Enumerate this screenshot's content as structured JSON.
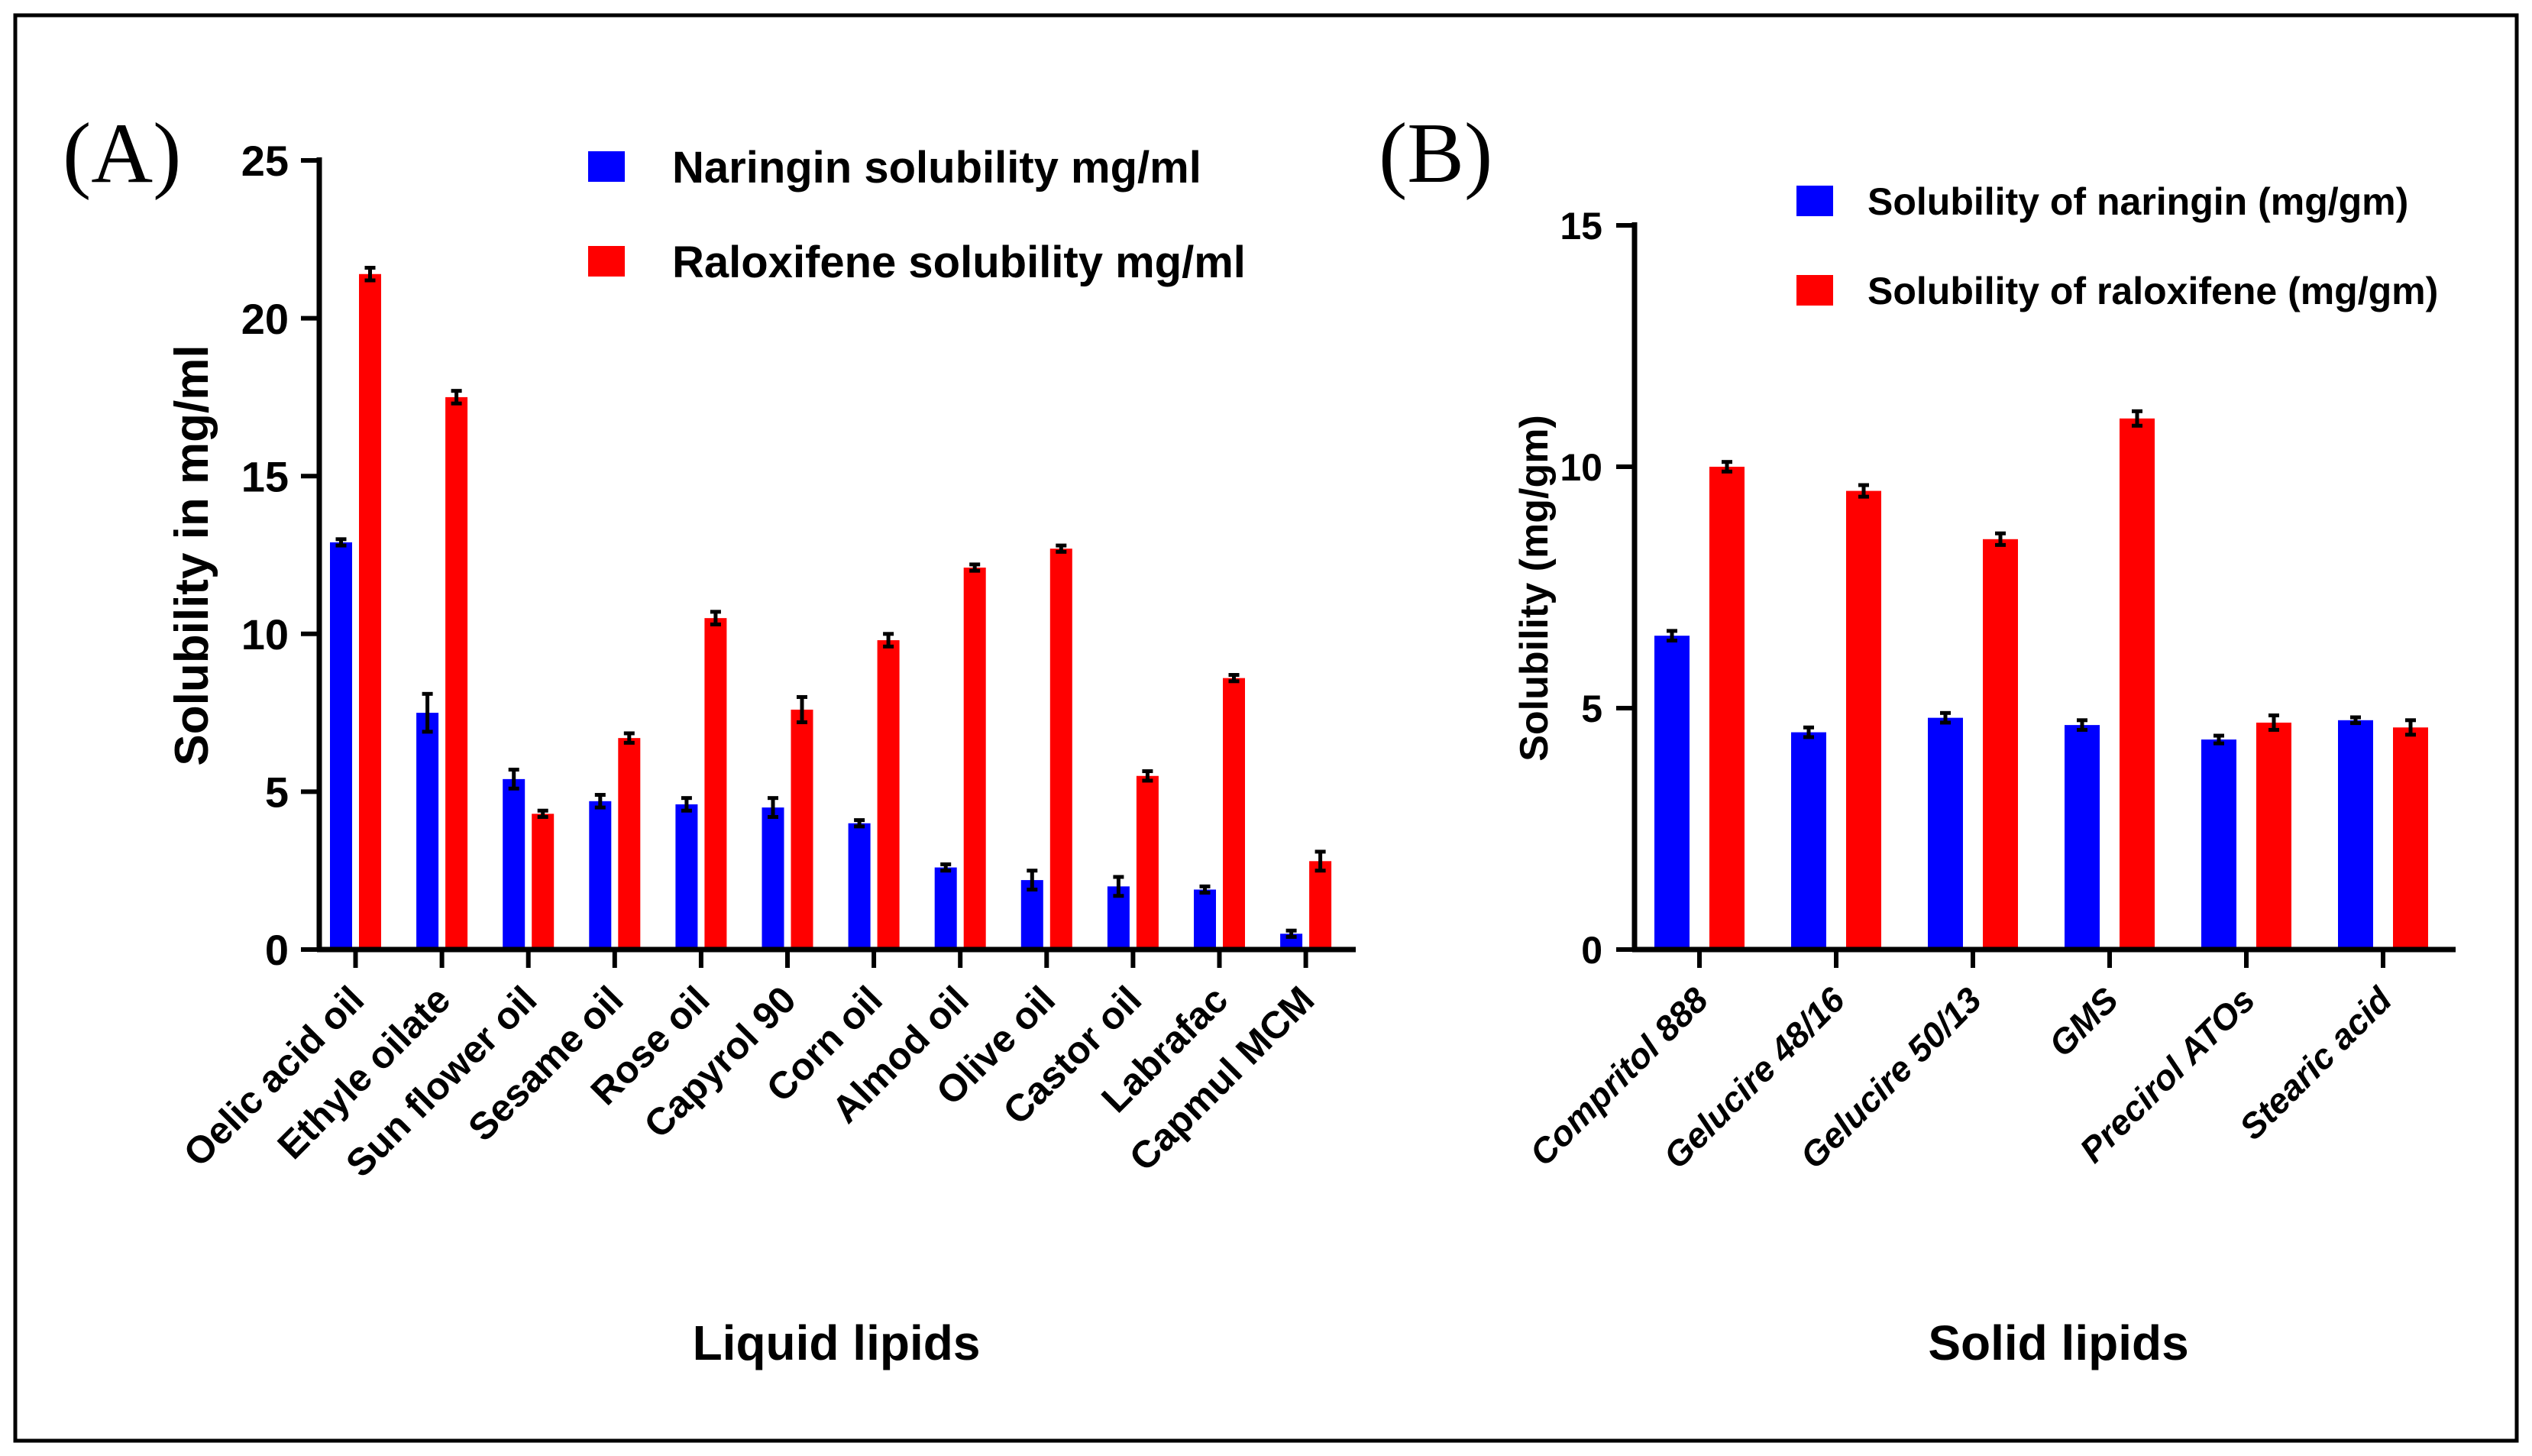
{
  "colors": {
    "naringin": "#0000ff",
    "raloxifene": "#ff0000",
    "axis": "#000000"
  },
  "chart_data": [
    {
      "panel": "(A)",
      "type": "bar",
      "title": "",
      "xlabel": "Liquid lipids",
      "ylabel": "Solubility in mg/ml",
      "ylim": [
        0,
        25
      ],
      "yticks": [
        0,
        5,
        10,
        15,
        20,
        25
      ],
      "grid": false,
      "legend_position": "top-right",
      "categories": [
        "Oelic acid oil",
        "Ethyle oilate",
        "Sun flower oil",
        "Sesame oil",
        "Rose oil",
        "Capyrol 90",
        "Corn oil",
        "Almod oil",
        "Olive oil",
        "Castor oil",
        "Labrafac",
        "Capmul MCM"
      ],
      "series": [
        {
          "name": "Naringin solubility mg/ml",
          "color": "#0000ff",
          "values": [
            12.9,
            7.5,
            5.4,
            4.7,
            4.6,
            4.5,
            4.0,
            2.6,
            2.2,
            2.0,
            1.9,
            0.5
          ],
          "errors": [
            0.1,
            0.6,
            0.3,
            0.2,
            0.2,
            0.3,
            0.1,
            0.1,
            0.3,
            0.3,
            0.1,
            0.1
          ]
        },
        {
          "name": "Raloxifene solubility mg/ml",
          "color": "#ff0000",
          "values": [
            21.4,
            17.5,
            4.3,
            6.7,
            10.5,
            7.6,
            9.8,
            12.1,
            12.7,
            5.5,
            8.6,
            2.8
          ],
          "errors": [
            0.2,
            0.2,
            0.1,
            0.15,
            0.2,
            0.4,
            0.2,
            0.1,
            0.1,
            0.15,
            0.1,
            0.3
          ]
        }
      ]
    },
    {
      "panel": "(B)",
      "type": "bar",
      "title": "",
      "xlabel": "Solid lipids",
      "ylabel": "Solubility (mg/gm)",
      "ylim": [
        0,
        15
      ],
      "yticks": [
        0,
        5,
        10,
        15
      ],
      "grid": false,
      "legend_position": "top-right",
      "categories": [
        "Compritol 888",
        "Gelucire 48/16",
        "Gelucire 50/13",
        "GMS",
        "Precirol ATOs",
        "Stearic acid"
      ],
      "series": [
        {
          "name": "Solubility of naringin (mg/gm)",
          "color": "#0000ff",
          "values": [
            6.5,
            4.5,
            4.8,
            4.65,
            4.35,
            4.75
          ],
          "errors": [
            0.1,
            0.1,
            0.1,
            0.1,
            0.08,
            0.06
          ]
        },
        {
          "name": "Solubility of raloxifene (mg/gm)",
          "color": "#ff0000",
          "values": [
            10.0,
            9.5,
            8.5,
            11.0,
            4.7,
            4.6
          ],
          "errors": [
            0.1,
            0.12,
            0.12,
            0.15,
            0.15,
            0.15
          ]
        }
      ]
    }
  ]
}
